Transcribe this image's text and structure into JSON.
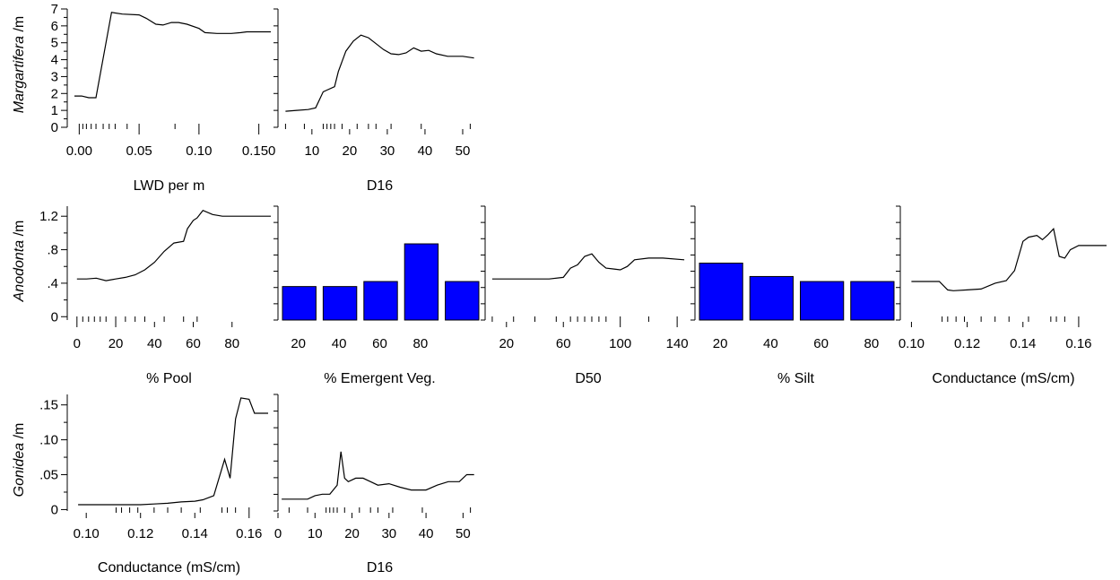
{
  "colors": {
    "line": "#000000",
    "bar_fill": "#0000FF",
    "bar_stroke": "#000000",
    "background": "#FFFFFF"
  },
  "row_labels": [
    {
      "species": "Margartifera",
      "unit": " /m"
    },
    {
      "species": "Anodonta",
      "unit": " /m"
    },
    {
      "species": "Gonidea",
      "unit": " /m"
    }
  ],
  "chart_data": [
    {
      "type": "line",
      "row": 0,
      "col": 0,
      "xlabel": "LWD per m",
      "xlim": [
        -0.01,
        0.16
      ],
      "ylim": [
        0,
        7
      ],
      "xticks": [
        0.0,
        0.05,
        0.1,
        0.15
      ],
      "xtick_labels": [
        "0.00",
        "0.05",
        "0.10",
        "0.150"
      ],
      "yticks": [
        0,
        1,
        2,
        3,
        4,
        5,
        6,
        7
      ],
      "ytick_labels": [
        "0",
        "1",
        "2",
        "3",
        "4",
        "5",
        "6",
        "7"
      ],
      "rug": [
        0.0,
        0.003,
        0.006,
        0.01,
        0.014,
        0.02,
        0.025,
        0.03,
        0.04,
        0.05,
        0.08,
        0.1,
        0.15
      ],
      "x": [
        -0.004,
        0.002,
        0.008,
        0.014,
        0.027,
        0.036,
        0.05,
        0.056,
        0.064,
        0.07,
        0.077,
        0.083,
        0.09,
        0.1,
        0.105,
        0.115,
        0.127,
        0.135,
        0.14,
        0.16
      ],
      "y": [
        1.85,
        1.85,
        1.75,
        1.75,
        6.8,
        6.7,
        6.65,
        6.45,
        6.1,
        6.05,
        6.2,
        6.2,
        6.1,
        5.85,
        5.6,
        5.55,
        5.55,
        5.6,
        5.65,
        5.65
      ]
    },
    {
      "type": "line",
      "row": 0,
      "col": 1,
      "xlabel": "D16",
      "xlim": [
        1,
        55
      ],
      "ylim": [
        0,
        7
      ],
      "xticks": [
        10,
        20,
        30,
        40,
        50
      ],
      "xtick_labels": [
        "10",
        "20",
        "30",
        "40",
        "50"
      ],
      "yticks": [],
      "ytick_labels": [],
      "rug": [
        3,
        8,
        13,
        14,
        15,
        16,
        18,
        22,
        25,
        27,
        31,
        39,
        52
      ],
      "x": [
        3,
        6,
        9,
        11,
        13,
        14,
        16,
        17,
        19,
        21,
        23,
        25,
        27,
        29,
        31,
        33,
        35,
        37,
        39,
        41,
        43,
        46,
        50,
        53
      ],
      "y": [
        0.95,
        1.0,
        1.05,
        1.15,
        2.1,
        2.2,
        2.4,
        3.3,
        4.5,
        5.1,
        5.45,
        5.3,
        4.95,
        4.6,
        4.35,
        4.3,
        4.4,
        4.7,
        4.5,
        4.55,
        4.35,
        4.2,
        4.2,
        4.1
      ]
    },
    {
      "type": "line",
      "row": 1,
      "col": 0,
      "xlabel": "% Pool",
      "xlim": [
        -5,
        100
      ],
      "ylim": [
        -0.04,
        1.32
      ],
      "xticks": [
        0,
        20,
        40,
        60,
        80
      ],
      "xtick_labels": [
        "0",
        "20",
        "40",
        "60",
        "80"
      ],
      "yticks": [
        0,
        0.4,
        0.8,
        1.2
      ],
      "ytick_labels": [
        "0",
        ".4",
        ".8",
        "1.2"
      ],
      "rug": [
        0,
        3,
        6,
        9,
        12,
        15,
        20,
        25,
        30,
        35,
        45,
        55,
        62
      ],
      "x": [
        0,
        5,
        10,
        15,
        20,
        25,
        30,
        35,
        40,
        45,
        50,
        55,
        57,
        60,
        62,
        65,
        70,
        75,
        80,
        90,
        100
      ],
      "y": [
        0.45,
        0.45,
        0.46,
        0.43,
        0.45,
        0.47,
        0.5,
        0.56,
        0.65,
        0.78,
        0.88,
        0.9,
        1.05,
        1.15,
        1.18,
        1.27,
        1.22,
        1.2,
        1.2,
        1.2,
        1.2
      ]
    },
    {
      "type": "bar",
      "row": 1,
      "col": 1,
      "xlabel": "% Emergent Veg.",
      "categories": [
        "20",
        "40",
        "60",
        "80",
        ""
      ],
      "ylim": [
        -0.04,
        1.32
      ],
      "values": [
        0.36,
        0.36,
        0.42,
        0.87,
        0.42
      ]
    },
    {
      "type": "line",
      "row": 1,
      "col": 2,
      "xlabel": "D50",
      "xlim": [
        5,
        150
      ],
      "ylim": [
        -0.04,
        1.32
      ],
      "xticks": [
        20,
        60,
        100,
        140
      ],
      "xtick_labels": [
        "20",
        "60",
        "100",
        "140"
      ],
      "yticks": [],
      "ytick_labels": [],
      "rug": [
        10,
        25,
        40,
        55,
        65,
        70,
        75,
        80,
        85,
        90,
        100,
        120,
        140
      ],
      "x": [
        10,
        30,
        50,
        60,
        65,
        70,
        75,
        80,
        85,
        90,
        95,
        100,
        105,
        110,
        120,
        130,
        145
      ],
      "y": [
        0.45,
        0.45,
        0.45,
        0.47,
        0.58,
        0.62,
        0.72,
        0.75,
        0.65,
        0.58,
        0.57,
        0.56,
        0.6,
        0.68,
        0.7,
        0.7,
        0.68
      ]
    },
    {
      "type": "bar",
      "row": 1,
      "col": 3,
      "xlabel": "% Silt",
      "categories": [
        "20",
        "40",
        "60",
        "80"
      ],
      "ylim": [
        -0.04,
        1.32
      ],
      "values": [
        0.64,
        0.48,
        0.42,
        0.42
      ]
    },
    {
      "type": "line",
      "row": 1,
      "col": 4,
      "xlabel": "Conductance (mS/cm)",
      "xlim": [
        0.096,
        0.17
      ],
      "ylim": [
        -0.04,
        1.32
      ],
      "xticks": [
        0.1,
        0.12,
        0.14,
        0.16
      ],
      "xtick_labels": [
        "0.10",
        "0.12",
        "0.14",
        "0.16"
      ],
      "yticks": [],
      "ytick_labels": [],
      "rug": [
        0.111,
        0.113,
        0.116,
        0.119,
        0.125,
        0.13,
        0.135,
        0.142,
        0.15,
        0.152,
        0.155,
        0.16
      ],
      "x": [
        0.1,
        0.105,
        0.11,
        0.113,
        0.115,
        0.12,
        0.125,
        0.13,
        0.134,
        0.137,
        0.14,
        0.142,
        0.145,
        0.147,
        0.149,
        0.151,
        0.153,
        0.155,
        0.157,
        0.16,
        0.165,
        0.17
      ],
      "y": [
        0.42,
        0.42,
        0.42,
        0.32,
        0.31,
        0.32,
        0.33,
        0.4,
        0.43,
        0.55,
        0.9,
        0.95,
        0.97,
        0.92,
        0.98,
        1.05,
        0.72,
        0.7,
        0.8,
        0.85,
        0.85,
        0.85
      ]
    },
    {
      "type": "line",
      "row": 2,
      "col": 0,
      "xlabel": "Conductance (mS/cm)",
      "xlim": [
        0.093,
        0.168
      ],
      "ylim": [
        -0.002,
        0.165
      ],
      "xticks": [
        0.1,
        0.12,
        0.14,
        0.16
      ],
      "xtick_labels": [
        "0.10",
        "0.12",
        "0.14",
        "0.16"
      ],
      "yticks": [
        0,
        0.05,
        0.1,
        0.15
      ],
      "ytick_labels": [
        "0",
        ".05",
        ".10",
        ".15"
      ],
      "rug": [
        0.111,
        0.113,
        0.116,
        0.119,
        0.125,
        0.13,
        0.135,
        0.142,
        0.15,
        0.152,
        0.155,
        0.16
      ],
      "x": [
        0.097,
        0.1,
        0.11,
        0.12,
        0.125,
        0.13,
        0.135,
        0.14,
        0.143,
        0.147,
        0.151,
        0.153,
        0.155,
        0.157,
        0.16,
        0.162,
        0.164,
        0.167
      ],
      "y": [
        0.007,
        0.007,
        0.007,
        0.007,
        0.008,
        0.009,
        0.011,
        0.012,
        0.014,
        0.02,
        0.072,
        0.045,
        0.13,
        0.16,
        0.158,
        0.138,
        0.138,
        0.138
      ]
    },
    {
      "type": "line",
      "row": 2,
      "col": 1,
      "xlabel": "D16",
      "xlim": [
        0,
        55
      ],
      "ylim": [
        -0.002,
        0.165
      ],
      "xticks": [
        0,
        10,
        20,
        30,
        40,
        50
      ],
      "xtick_labels": [
        "0",
        "10",
        "20",
        "30",
        "40",
        "50"
      ],
      "yticks": [],
      "ytick_labels": [],
      "rug": [
        3,
        8,
        13,
        14,
        15,
        16,
        18,
        22,
        25,
        27,
        31,
        39,
        52
      ],
      "x": [
        1,
        8,
        10,
        12,
        14,
        16,
        17,
        18,
        19,
        21,
        23,
        25,
        27,
        30,
        33,
        36,
        40,
        43,
        46,
        49,
        51,
        53
      ],
      "y": [
        0.015,
        0.015,
        0.02,
        0.022,
        0.022,
        0.035,
        0.083,
        0.045,
        0.04,
        0.045,
        0.045,
        0.04,
        0.035,
        0.037,
        0.032,
        0.028,
        0.028,
        0.035,
        0.04,
        0.04,
        0.05,
        0.05
      ]
    }
  ]
}
